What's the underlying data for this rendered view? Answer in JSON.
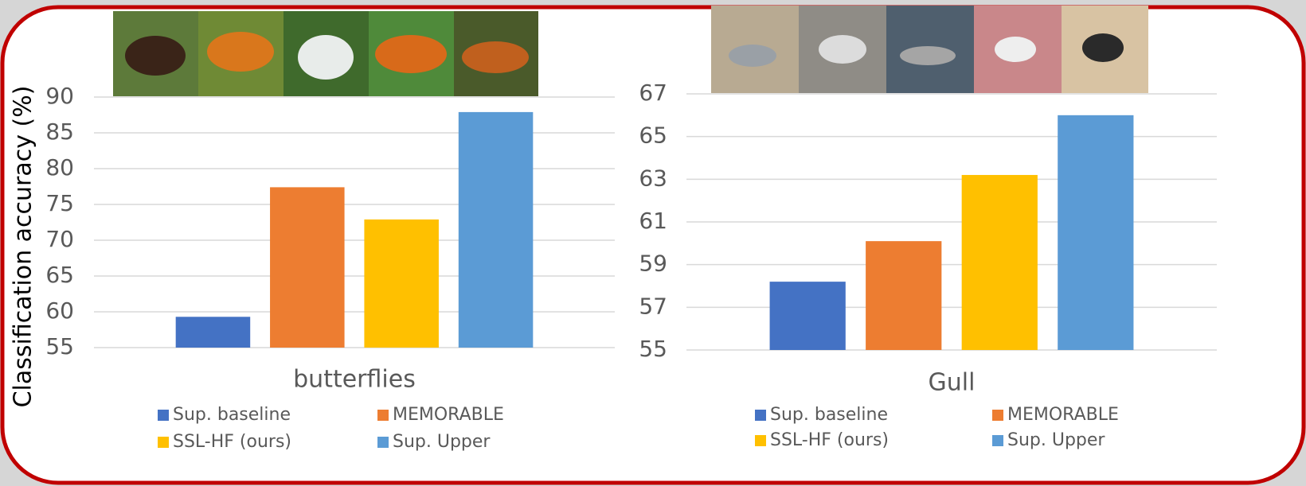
{
  "chart_data": [
    {
      "type": "bar",
      "y_label": "Classification accuracy (%)",
      "categories": [
        "butterflies"
      ],
      "series": [
        {
          "name": "Sup. baseline",
          "color": "#4472c4",
          "values": [
            59.3
          ]
        },
        {
          "name": "MEMORABLE",
          "color": "#ed7d31",
          "values": [
            77.4
          ]
        },
        {
          "name": "SSL-HF (ours)",
          "color": "#ffc000",
          "values": [
            72.9
          ]
        },
        {
          "name": "Sup. Upper",
          "color": "#5b9bd5",
          "values": [
            87.9
          ]
        }
      ],
      "ylim": [
        55,
        90
      ],
      "yticks": [
        55,
        60,
        65,
        70,
        75,
        80,
        85,
        90
      ],
      "grid": true,
      "legend": "bottom"
    },
    {
      "type": "bar",
      "categories": [
        "Gull"
      ],
      "series": [
        {
          "name": "Sup. baseline",
          "color": "#4472c4",
          "values": [
            58.2
          ]
        },
        {
          "name": "MEMORABLE",
          "color": "#ed7d31",
          "values": [
            60.1
          ]
        },
        {
          "name": "SSL-HF (ours)",
          "color": "#ffc000",
          "values": [
            63.2
          ]
        },
        {
          "name": "Sup. Upper",
          "color": "#5b9bd5",
          "values": [
            66.0
          ]
        }
      ],
      "ylim": [
        55,
        67
      ],
      "yticks": [
        55,
        57,
        59,
        61,
        63,
        65,
        67
      ],
      "grid": true,
      "legend": "bottom"
    }
  ]
}
